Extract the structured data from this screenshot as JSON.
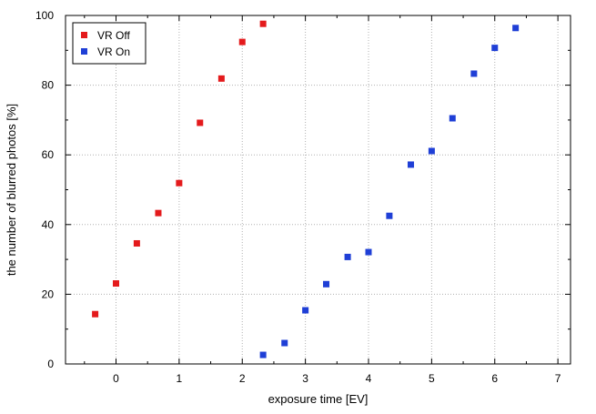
{
  "chart_data": {
    "type": "scatter",
    "title": "",
    "xlabel": "exposure time [EV]",
    "ylabel": "the number of blurred photos [%]",
    "xlim": [
      -0.8,
      7.2
    ],
    "ylim": [
      0,
      100
    ],
    "xticks": [
      0,
      1,
      2,
      3,
      4,
      5,
      6,
      7
    ],
    "yticks": [
      0,
      20,
      40,
      60,
      80,
      100
    ],
    "grid": true,
    "legend_position": "top-left",
    "series": [
      {
        "name": "VR Off",
        "color": "#e41a1c",
        "marker": "square",
        "points": [
          [
            -0.33,
            14.3
          ],
          [
            0.0,
            23.1
          ],
          [
            0.33,
            34.6
          ],
          [
            0.67,
            43.3
          ],
          [
            1.0,
            51.9
          ],
          [
            1.33,
            69.2
          ],
          [
            1.67,
            81.9
          ],
          [
            2.0,
            92.4
          ],
          [
            2.33,
            97.6
          ]
        ]
      },
      {
        "name": "VR On",
        "color": "#1f3fd6",
        "marker": "square",
        "points": [
          [
            2.33,
            2.6
          ],
          [
            2.67,
            6.0
          ],
          [
            3.0,
            15.4
          ],
          [
            3.33,
            22.9
          ],
          [
            3.67,
            30.7
          ],
          [
            4.0,
            32.1
          ],
          [
            4.33,
            42.5
          ],
          [
            4.67,
            57.2
          ],
          [
            5.0,
            61.1
          ],
          [
            5.33,
            70.5
          ],
          [
            5.67,
            83.3
          ],
          [
            6.0,
            90.7
          ],
          [
            6.33,
            96.4
          ]
        ]
      }
    ]
  }
}
